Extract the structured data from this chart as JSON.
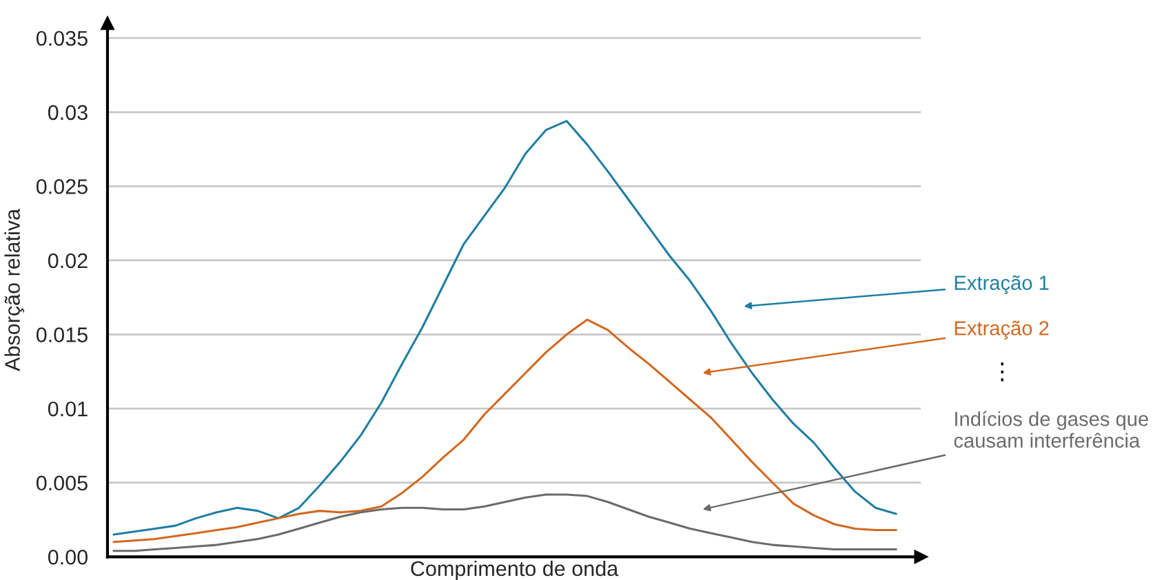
{
  "chart_data": {
    "type": "line",
    "xlabel": "Comprimento de onda",
    "ylabel": "Absorção relativa",
    "categories": [
      null,
      null,
      null,
      null,
      null,
      null,
      null,
      null,
      null,
      null,
      null,
      null,
      null,
      null,
      null,
      null,
      null,
      null,
      null,
      null,
      null,
      null,
      null,
      null,
      null,
      null,
      null,
      null,
      null,
      null,
      null,
      null,
      null,
      null,
      null,
      null,
      null,
      null,
      null
    ],
    "series": [
      {
        "name": "Extração 1",
        "color": "#1f7ea1",
        "values": [
          0.0015,
          0.0017,
          0.0019,
          0.0021,
          0.0026,
          0.003,
          0.0033,
          0.0031,
          0.0026,
          0.0033,
          0.0048,
          0.0064,
          0.0082,
          0.0104,
          0.013,
          0.0155,
          0.0183,
          0.0211,
          0.023,
          0.0249,
          0.0272,
          0.0288,
          0.0294,
          0.0278,
          0.026,
          0.0241,
          0.0222,
          0.0203,
          0.0186,
          0.0166,
          0.0144,
          0.0124,
          0.0106,
          0.009,
          0.0077,
          0.006,
          0.0044,
          0.0033,
          0.0029
        ]
      },
      {
        "name": "Extração 2",
        "color": "#d2681f",
        "values": [
          0.001,
          0.0011,
          0.0012,
          0.0014,
          0.0016,
          0.0018,
          0.002,
          0.0023,
          0.0026,
          0.0029,
          0.0031,
          0.003,
          0.0031,
          0.0034,
          0.0043,
          0.0054,
          0.0067,
          0.0079,
          0.0096,
          0.011,
          0.0124,
          0.0138,
          0.015,
          0.016,
          0.0153,
          0.0141,
          0.013,
          0.0118,
          0.0106,
          0.0094,
          0.0079,
          0.0064,
          0.005,
          0.0036,
          0.0028,
          0.0022,
          0.0019,
          0.0018,
          0.0018
        ]
      },
      {
        "name": "Indícios de gases que causam interferência",
        "color": "#6b6b6b",
        "values": [
          0.0004,
          0.0004,
          0.0005,
          0.0006,
          0.0007,
          0.0008,
          0.001,
          0.0012,
          0.0015,
          0.0019,
          0.0023,
          0.0027,
          0.003,
          0.0032,
          0.0033,
          0.0033,
          0.0032,
          0.0032,
          0.0034,
          0.0037,
          0.004,
          0.0042,
          0.0042,
          0.0041,
          0.0037,
          0.0032,
          0.0027,
          0.0023,
          0.0019,
          0.0016,
          0.0013,
          0.001,
          0.0008,
          0.0007,
          0.0006,
          0.0005,
          0.0005,
          0.0005,
          0.0005
        ]
      }
    ],
    "annotations": [
      "⋮"
    ],
    "ylim": [
      0,
      0.036
    ],
    "yticks": [
      {
        "value": 0,
        "label": "0.00"
      },
      0.005,
      0.01,
      0.015,
      0.02,
      0.025,
      0.03,
      0.035
    ],
    "grid": "y",
    "legend": false,
    "tick_labels": "y",
    "marker": "none",
    "line_style": "solid"
  }
}
